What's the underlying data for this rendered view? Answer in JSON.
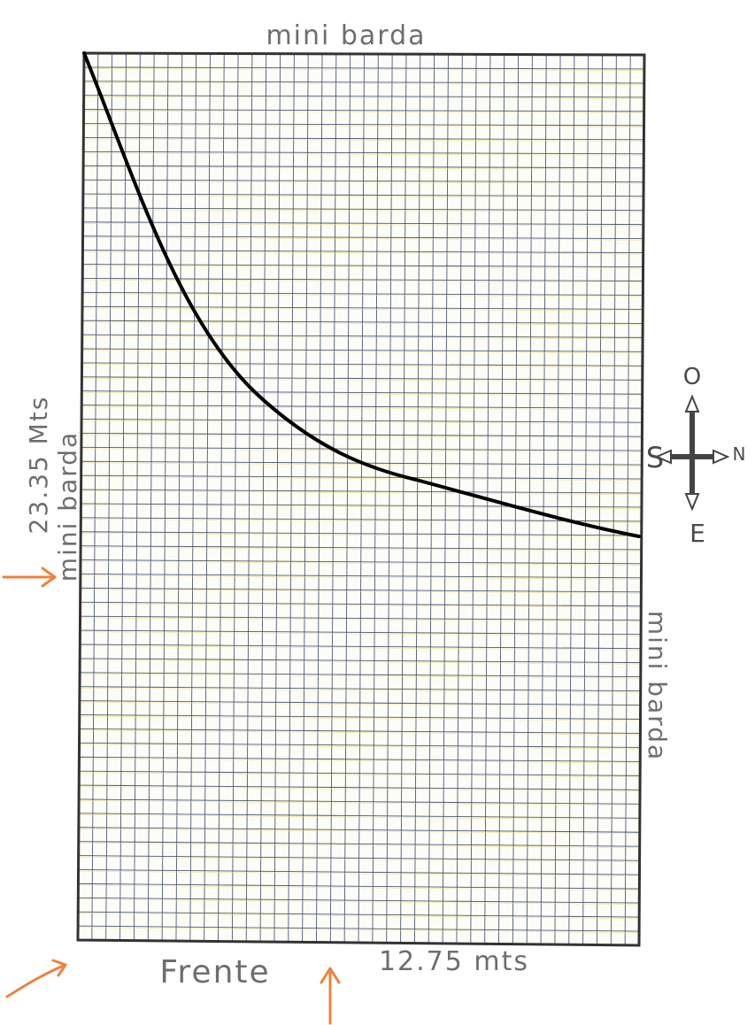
{
  "labels": {
    "top_wall": "mini barda",
    "left_dimension": "23.35 Mts",
    "left_wall": "mini barda",
    "right_wall": "mini barda",
    "front": "Frente",
    "front_dimension": "12.75 mts"
  },
  "compass": {
    "north": "N",
    "south": "S",
    "east": "E",
    "west": "O"
  },
  "plot": {
    "width_m": 12.75,
    "depth_m": 23.35,
    "grid_columns": 40,
    "grid_rows": 63
  },
  "colors": {
    "grid_line": "#2f3b63",
    "grid_line_yellow": "#e8e070",
    "border": "#333333",
    "curve": "#000000",
    "annotation_arrow": "#f08040",
    "text": "#6e6e6e"
  }
}
